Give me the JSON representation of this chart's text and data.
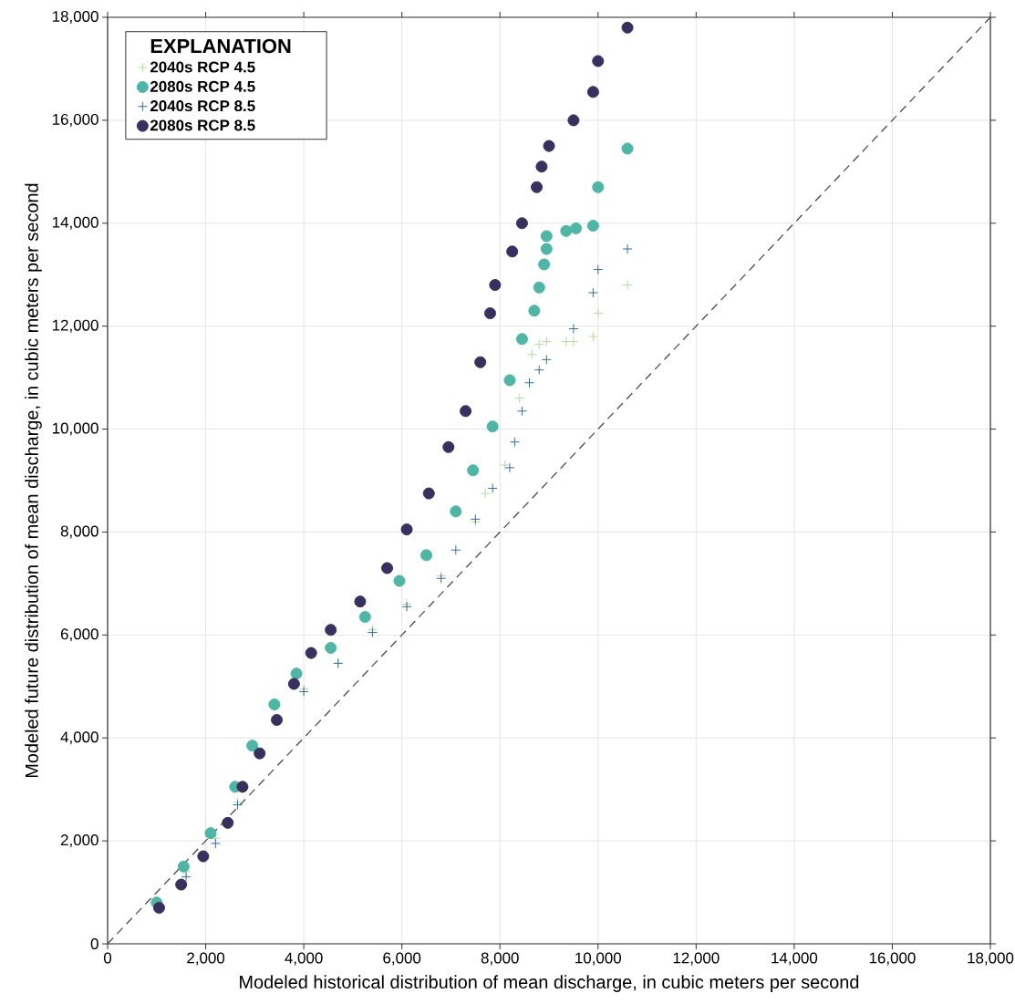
{
  "chart_data": {
    "type": "scatter",
    "xlabel": "Modeled historical distribution of mean discharge, in cubic meters per second",
    "ylabel": "Modeled future distribution of mean discharge, in cubic meters per second",
    "legend_title": "EXPLANATION",
    "xlim": [
      0,
      18000
    ],
    "ylim": [
      0,
      18000
    ],
    "xticks": [
      0,
      {
        "value": 2000,
        "label": "2,000"
      },
      {
        "value": 4000,
        "label": "4,000"
      },
      {
        "value": 6000,
        "label": "6,000"
      },
      {
        "value": 8000,
        "label": "8,000"
      },
      {
        "value": 10000,
        "label": "10,000"
      },
      {
        "value": 12000,
        "label": "12,000"
      },
      {
        "value": 14000,
        "label": "14,000"
      },
      {
        "value": 16000,
        "label": "16,000"
      },
      {
        "value": 18000,
        "label": "18,000"
      }
    ],
    "yticks": [
      0,
      {
        "value": 2000,
        "label": "2,000"
      },
      {
        "value": 4000,
        "label": "4,000"
      },
      {
        "value": 6000,
        "label": "6,000"
      },
      {
        "value": 8000,
        "label": "8,000"
      },
      {
        "value": 10000,
        "label": "10,000"
      },
      {
        "value": 12000,
        "label": "12,000"
      },
      {
        "value": 14000,
        "label": "14,000"
      },
      {
        "value": 16000,
        "label": "16,000"
      },
      {
        "value": 18000,
        "label": "18,000"
      }
    ],
    "grid": true,
    "legend": "top left",
    "series": [
      {
        "type": "line",
        "color": "#4d4d4d",
        "line_style": "dashed",
        "marker": "none",
        "x": [
          0,
          18000
        ],
        "values": [
          0,
          18000
        ]
      },
      {
        "name": "2040s RCP 4.5",
        "color": "#b5dba0",
        "marker": "cross",
        "x": [
          1600,
          2200,
          2650,
          4000,
          4700,
          5400,
          6100,
          6800,
          7500,
          7700,
          8100,
          8400,
          8650,
          8800,
          8950,
          9350,
          9500,
          9900,
          10000,
          10600
        ],
        "values": [
          1400,
          2050,
          2750,
          4950,
          5450,
          6100,
          6600,
          7150,
          8200,
          8750,
          9300,
          10600,
          11450,
          11650,
          11700,
          11700,
          11700,
          11800,
          12250,
          12800
        ]
      },
      {
        "name": "2080s RCP 4.5",
        "color": "#4db6a4",
        "marker": "circle",
        "x": [
          1000,
          1550,
          2100,
          2600,
          2950,
          3400,
          3850,
          4550,
          5250,
          5950,
          6500,
          7100,
          7450,
          7850,
          8200,
          8450,
          8700,
          8800,
          8900,
          8950,
          8950,
          9350,
          9550,
          9900,
          10000,
          10600
        ],
        "values": [
          800,
          1500,
          2150,
          3050,
          3850,
          4650,
          5250,
          5750,
          6350,
          7050,
          7550,
          8400,
          9200,
          10050,
          10950,
          11750,
          12300,
          12750,
          13200,
          13500,
          13750,
          13850,
          13900,
          13950,
          14700,
          15450
        ]
      },
      {
        "name": "2040s RCP 8.5",
        "color": "#3a6e9e",
        "marker": "cross",
        "x": [
          1600,
          2200,
          2650,
          4000,
          4700,
          5400,
          6100,
          6800,
          7100,
          7500,
          7850,
          8200,
          8300,
          8450,
          8600,
          8800,
          8950,
          9500,
          9900,
          10000,
          10600
        ],
        "values": [
          1300,
          1950,
          2700,
          4900,
          5450,
          6050,
          6550,
          7100,
          7650,
          8250,
          8850,
          9250,
          9750,
          10350,
          10900,
          11150,
          11350,
          11950,
          12650,
          13100,
          13500
        ]
      },
      {
        "name": "2080s RCP 8.5",
        "color": "#38305f",
        "marker": "circle",
        "x": [
          1050,
          1500,
          1950,
          2450,
          2750,
          3100,
          3450,
          3800,
          4150,
          4550,
          5150,
          5700,
          6100,
          6550,
          6950,
          7300,
          7600,
          7800,
          7900,
          8250,
          8450,
          8750,
          8850,
          9000,
          9500,
          9900,
          10000,
          10600
        ],
        "values": [
          700,
          1150,
          1700,
          2350,
          3050,
          3700,
          4350,
          5050,
          5650,
          6100,
          6650,
          7300,
          8050,
          8750,
          9650,
          10350,
          11300,
          12250,
          12800,
          13450,
          14000,
          14700,
          15100,
          15500,
          16000,
          16550,
          17150,
          17800
        ]
      }
    ]
  }
}
